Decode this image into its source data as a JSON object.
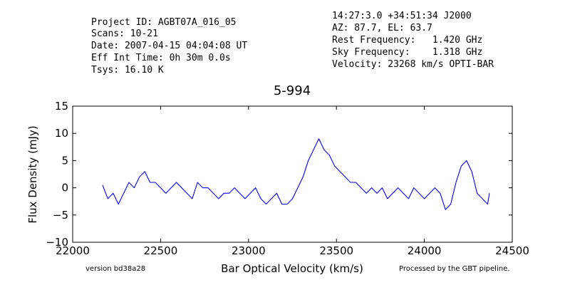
{
  "header": {
    "left": [
      "Project ID: AGBT07A_016_05",
      "Scans: 10-21",
      "Date: 2007-04-15 04:04:08 UT",
      "Eff Int Time: 0h 30m 0.0s",
      "Tsys: 16.10 K"
    ],
    "right": [
      "14:27:3.0 +34:51:34 J2000",
      "AZ: 87.7, EL: 63.7",
      "Rest Frequency:   1.420 GHz",
      "Sky Frequency:    1.318 GHz",
      "Velocity: 23268 km/s OPTI-BAR"
    ]
  },
  "footer": {
    "version": "version bd38a28",
    "pipeline": "Processed by the GBT pipeline.",
    "pipeline_color": "#e84a4a"
  },
  "chart_data": {
    "type": "line",
    "title": "5-994",
    "xlabel": "Bar Optical Velocity (km/s)",
    "ylabel": "Flux Density (mJy)",
    "xlim": [
      22000,
      24500
    ],
    "ylim": [
      -10,
      15
    ],
    "xticks": [
      "22000",
      "22500",
      "23000",
      "23500",
      "24000",
      "24500"
    ],
    "yticks": [
      "15",
      "10",
      "5",
      "0",
      "−5",
      "−10"
    ],
    "grid": false,
    "line_color": "#0000ff",
    "series": [
      {
        "x": [
          22170,
          22200,
          22230,
          22260,
          22290,
          22320,
          22350,
          22380,
          22410,
          22440,
          22470,
          22500,
          22530,
          22560,
          22590,
          22620,
          22650,
          22680,
          22710,
          22740,
          22770,
          22800,
          22830,
          22860,
          22890,
          22920,
          22950,
          22980,
          23010,
          23040,
          23070,
          23100,
          23130,
          23160,
          23190,
          23220,
          23250,
          23280,
          23310,
          23340,
          23370,
          23400,
          23430,
          23460,
          23490,
          23520,
          23550,
          23580,
          23610,
          23640,
          23670,
          23700,
          23730,
          23760,
          23790,
          23820,
          23850,
          23880,
          23910,
          23940,
          23970,
          24000,
          24030,
          24060,
          24090,
          24120,
          24150,
          24180,
          24210,
          24240,
          24270,
          24300,
          24330,
          24360,
          24370
        ],
        "y": [
          0.5,
          -2,
          -1,
          -3,
          -1,
          1,
          0,
          2,
          3,
          1,
          1,
          0,
          -1,
          0,
          1,
          0,
          -1,
          -2,
          1,
          0,
          0,
          -1,
          -2,
          -1,
          -1,
          0,
          -1,
          -2,
          -1,
          0,
          -2,
          -3,
          -2,
          -1,
          -3,
          -3,
          -2,
          0,
          2,
          5,
          7,
          9,
          7,
          6,
          4,
          3,
          2,
          1,
          1,
          0,
          -1,
          0,
          -1,
          0,
          -2,
          -1,
          0,
          -1,
          -2,
          0,
          -1,
          -2,
          -1,
          0,
          -1,
          -4,
          -3,
          1,
          4,
          5,
          3,
          -1,
          -2,
          -3,
          -1
        ]
      }
    ]
  }
}
